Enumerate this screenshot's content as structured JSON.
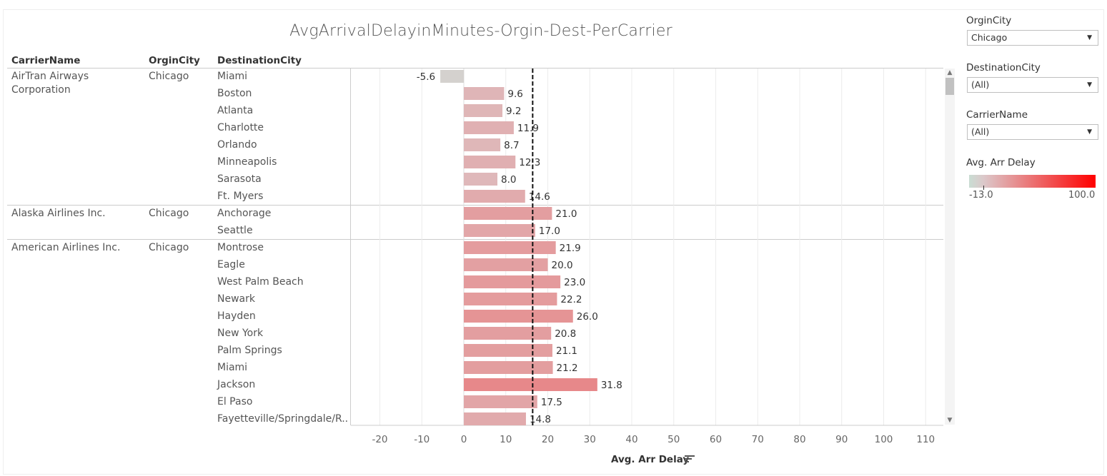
{
  "title": "AvgArrivalDelayinMinutes-Orgin-Dest-PerCarrier",
  "headers": {
    "carrier": "CarrierName",
    "origin": "OrginCity",
    "destination": "DestinationCity"
  },
  "groups": [
    {
      "carrier": "AirTran Airways Corporation",
      "origin": "Chicago"
    },
    {
      "carrier": "Alaska Airlines Inc.",
      "origin": "Chicago"
    },
    {
      "carrier": "American Airlines Inc.",
      "origin": "Chicago"
    }
  ],
  "axis_label": "Avg. Arr Delay",
  "filters": {
    "origin": {
      "label": "OrginCity",
      "value": "Chicago"
    },
    "destination": {
      "label": "DestinationCity",
      "value": "(All)"
    },
    "carrier": {
      "label": "CarrierName",
      "value": "(All)"
    }
  },
  "legend": {
    "title": "Avg. Arr Delay",
    "min": "-13.0",
    "max": "100.0",
    "color_low": "#c9ddd3",
    "color_mid": "#dcc8ca",
    "color_high": "#ff0000"
  },
  "chart_data": {
    "type": "bar",
    "orientation": "horizontal",
    "categories": [
      "Miami",
      "Boston",
      "Atlanta",
      "Charlotte",
      "Orlando",
      "Minneapolis",
      "Sarasota",
      "Ft. Myers",
      "Anchorage",
      "Seattle",
      "Montrose",
      "Eagle",
      "West Palm Beach",
      "Newark",
      "Hayden",
      "New York",
      "Palm Springs",
      "Miami",
      "Jackson",
      "El Paso",
      "Fayetteville/Springdale/R.."
    ],
    "carrier_groups": [
      8,
      2,
      11
    ],
    "values": [
      -5.6,
      9.6,
      9.2,
      11.9,
      8.7,
      12.3,
      8.0,
      14.6,
      21.0,
      17.0,
      21.9,
      20.0,
      23.0,
      22.2,
      26.0,
      20.8,
      21.1,
      21.2,
      31.8,
      17.5,
      14.8
    ],
    "labels": [
      "-5.6",
      "9.6",
      "9.2",
      "11.9",
      "8.7",
      "12.3",
      "8.0",
      "14.6",
      "21.0",
      "17.0",
      "21.9",
      "20.0",
      "23.0",
      "22.2",
      "26.0",
      "20.8",
      "21.1",
      "21.2",
      "31.8",
      "17.5",
      "14.8"
    ],
    "reference_line": 16.4,
    "xlim": [
      -27,
      115
    ],
    "xticks": [
      -20,
      -10,
      0,
      10,
      20,
      30,
      40,
      50,
      60,
      70,
      80,
      90,
      100,
      110
    ],
    "xlabel": "Avg. Arr Delay",
    "grid": true
  }
}
